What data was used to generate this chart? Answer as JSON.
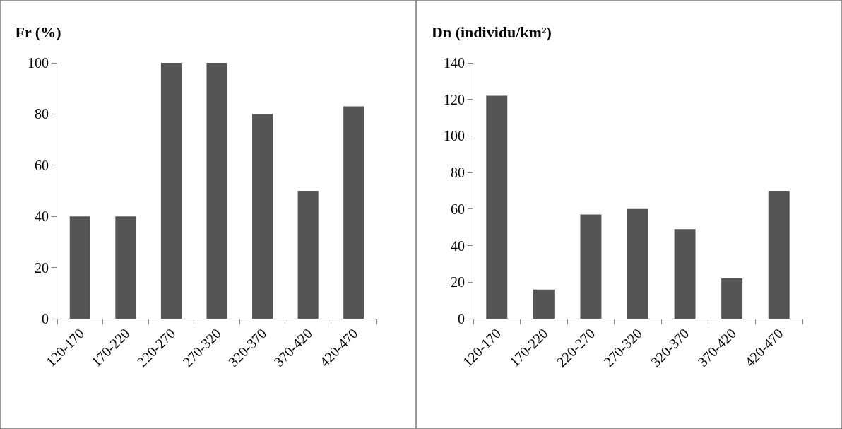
{
  "chart_data": [
    {
      "type": "bar",
      "title": "Fr (%)",
      "categories": [
        "120-170",
        "170-220",
        "220-270",
        "270-320",
        "320-370",
        "370-420",
        "420-470"
      ],
      "values": [
        40,
        40,
        100,
        100,
        80,
        50,
        83
      ],
      "color": "#555555",
      "ylim": [
        0,
        100
      ],
      "yticks": [
        0,
        20,
        40,
        60,
        80,
        100
      ],
      "grid": false
    },
    {
      "type": "bar",
      "title": "Dn (individu/km²)",
      "categories": [
        "120-170",
        "170-220",
        "220-270",
        "270-320",
        "320-370",
        "370-420",
        "420-470"
      ],
      "values": [
        122,
        16,
        57,
        60,
        49,
        22,
        70
      ],
      "color": "#555555",
      "ylim": [
        0,
        140
      ],
      "yticks": [
        0,
        20,
        40,
        60,
        80,
        100,
        120,
        140
      ],
      "grid": false
    }
  ]
}
